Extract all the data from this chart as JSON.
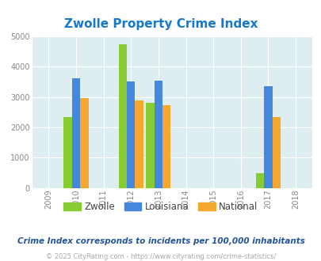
{
  "title": "Zwolle Property Crime Index",
  "title_color": "#1878cc",
  "years": [
    2009,
    2010,
    2011,
    2012,
    2013,
    2014,
    2015,
    2016,
    2017,
    2018
  ],
  "data": {
    "2010": {
      "zwolle": 2330,
      "louisiana": 3620,
      "national": 2960
    },
    "2012": {
      "zwolle": 4750,
      "louisiana": 3520,
      "national": 2880
    },
    "2013": {
      "zwolle": 2800,
      "louisiana": 3550,
      "national": 2720
    },
    "2017": {
      "zwolle": 490,
      "louisiana": 3360,
      "national": 2340
    }
  },
  "zwolle_color": "#88cc33",
  "louisiana_color": "#4488dd",
  "national_color": "#f5a830",
  "ylim": [
    0,
    5000
  ],
  "yticks": [
    0,
    1000,
    2000,
    3000,
    4000,
    5000
  ],
  "bg_color": "#deeef0",
  "bar_width": 0.3,
  "caption": "Crime Index corresponds to incidents per 100,000 inhabitants",
  "footer": "© 2025 CityRating.com - https://www.cityrating.com/crime-statistics/",
  "caption_color": "#225599",
  "footer_color": "#aaaaaa"
}
